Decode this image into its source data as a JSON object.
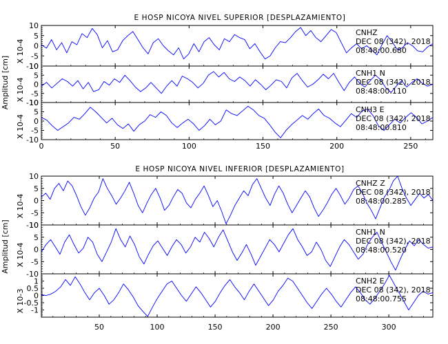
{
  "chart_data": [
    {
      "type": "line",
      "title": "E HOSP NICOYA NIVEL SUPERIOR [DESPLAZAMIENTO]",
      "ylabel": "Amplitud [cm]",
      "xlim": [
        0,
        265
      ],
      "xticks": [
        0,
        50,
        100,
        150,
        200,
        250
      ],
      "line_color": "#0000ff",
      "traces": [
        {
          "scale_label": "X 10-4",
          "ylim": [
            -10,
            10
          ],
          "yticks": [
            -10,
            -5,
            0,
            5,
            10
          ],
          "channel": "CNHZ",
          "date": "DEC 08 (342), 2018",
          "time": "08:48:00.680",
          "values": [
            0.5,
            -1.2,
            3.0,
            -2.0,
            1.5,
            -3.5,
            2.0,
            0.5,
            6.0,
            4.0,
            8.5,
            5.5,
            -1.0,
            2.5,
            -3.0,
            -2.0,
            2.5,
            5.0,
            7.0,
            3.0,
            -1.0,
            -4.0,
            1.5,
            3.5,
            0.0,
            -2.5,
            -4.5,
            -1.0,
            -6.5,
            -4.0,
            1.0,
            -3.0,
            2.0,
            4.0,
            0.5,
            -2.0,
            3.5,
            2.0,
            5.5,
            4.0,
            3.0,
            -1.5,
            1.0,
            -3.0,
            -6.5,
            -5.0,
            -1.0,
            2.0,
            1.5,
            4.0,
            7.0,
            9.0,
            5.0,
            7.5,
            4.0,
            2.0,
            5.0,
            8.0,
            6.5,
            1.5,
            -3.5,
            -1.0,
            1.0,
            -1.5,
            0.0,
            -2.0,
            -4.5,
            0.5,
            5.0,
            2.0,
            -2.0,
            -1.0,
            1.5,
            0.0,
            -2.5,
            -3.0,
            -0.5,
            1.0
          ]
        },
        {
          "scale_label": "X 10-4",
          "ylim": [
            -10,
            10
          ],
          "yticks": [
            -10,
            -5,
            0,
            5,
            10
          ],
          "channel": "CNH1 N",
          "date": "DEC 08 (342), 2018",
          "time": "08:48:00.110",
          "values": [
            -1.0,
            1.0,
            -2.0,
            0.5,
            3.0,
            1.5,
            -1.0,
            2.0,
            -2.5,
            1.0,
            -4.0,
            -3.0,
            1.5,
            -0.5,
            3.0,
            1.0,
            5.0,
            2.0,
            -1.5,
            -4.0,
            -2.0,
            1.0,
            -2.0,
            -5.0,
            -1.0,
            2.0,
            -1.0,
            4.5,
            3.0,
            1.0,
            -2.0,
            0.5,
            5.0,
            7.0,
            4.0,
            6.5,
            3.0,
            1.5,
            4.0,
            2.0,
            -1.0,
            2.5,
            0.0,
            -3.0,
            -0.5,
            2.5,
            1.5,
            -2.0,
            3.5,
            6.0,
            2.0,
            -1.5,
            0.0,
            2.5,
            5.5,
            3.0,
            6.0,
            1.0,
            -3.5,
            1.0,
            4.0,
            0.5,
            -1.5,
            2.0,
            5.0,
            2.5,
            -2.0,
            -4.5,
            -1.0,
            2.0,
            -1.5,
            1.0,
            3.0,
            0.5,
            -1.0,
            0.0
          ]
        },
        {
          "scale_label": "X 10-4",
          "ylim": [
            -10,
            10
          ],
          "yticks": [
            -10,
            -5,
            0,
            5,
            10
          ],
          "channel": "CNH3 E",
          "date": "DEC 08 (342), 2018",
          "time": "08:48:00.810",
          "values": [
            2.0,
            0.5,
            -2.5,
            -5.0,
            -3.0,
            -1.0,
            2.0,
            1.0,
            4.0,
            7.5,
            5.0,
            2.0,
            -1.0,
            1.5,
            -2.0,
            -4.0,
            -1.5,
            -5.5,
            -2.0,
            0.0,
            3.5,
            2.0,
            5.0,
            3.0,
            -1.0,
            -3.5,
            -1.0,
            1.0,
            -1.5,
            -5.0,
            -2.5,
            1.0,
            -2.0,
            0.0,
            6.0,
            4.0,
            3.0,
            5.5,
            8.0,
            6.0,
            3.0,
            1.5,
            -2.0,
            -6.0,
            -9.0,
            -5.0,
            -2.0,
            0.5,
            3.0,
            1.0,
            4.0,
            6.5,
            3.0,
            1.5,
            -1.0,
            -3.0,
            0.5,
            4.0,
            2.0,
            5.5,
            6.5,
            3.0,
            -2.5,
            -5.0,
            -2.0,
            1.0,
            -1.0,
            2.0,
            4.5,
            2.0,
            -1.5,
            0.0,
            2.0
          ]
        }
      ]
    },
    {
      "type": "line",
      "title": "E HOSP NICOYA NIVEL INFERIOR [DESPLAZAMIENTO]",
      "ylabel": "Amplitud [cm]",
      "xlim": [
        0,
        338
      ],
      "xticks": [
        50,
        100,
        150,
        200,
        250,
        300
      ],
      "line_color": "#0000ff",
      "traces": [
        {
          "scale_label": "X 10-4",
          "ylim": [
            -10,
            10
          ],
          "yticks": [
            -10,
            -5,
            0,
            5,
            10
          ],
          "channel": "CNHZ Z",
          "date": "DEC 08 (342), 2018",
          "time": "08:48:00.285",
          "values": [
            1.5,
            3.0,
            0.5,
            5.0,
            7.0,
            4.0,
            8.0,
            6.0,
            2.0,
            -2.5,
            -6.0,
            -3.0,
            1.0,
            3.5,
            9.0,
            5.0,
            2.0,
            -1.5,
            1.0,
            4.0,
            7.5,
            3.0,
            -2.0,
            -5.0,
            -1.0,
            2.5,
            5.0,
            1.0,
            -4.0,
            -2.0,
            1.5,
            4.5,
            3.0,
            -1.0,
            -3.0,
            0.5,
            3.0,
            6.0,
            2.0,
            -2.5,
            0.0,
            -4.5,
            -9.5,
            -6.0,
            -2.0,
            1.0,
            4.0,
            2.0,
            6.5,
            9.0,
            5.0,
            1.0,
            -2.0,
            2.5,
            6.0,
            3.0,
            -1.5,
            -5.0,
            -2.0,
            1.0,
            4.0,
            1.5,
            -3.0,
            -6.5,
            -4.0,
            -1.0,
            2.5,
            5.0,
            2.0,
            -1.5,
            1.0,
            4.5,
            6.0,
            3.0,
            -1.0,
            -4.0,
            -7.5,
            -3.0,
            1.5,
            4.0,
            8.0,
            11.0,
            5.0,
            1.0,
            -2.0,
            0.5,
            3.0,
            1.0,
            2.5,
            0.0
          ]
        },
        {
          "scale_label": "X 10-4",
          "ylim": [
            -10,
            10
          ],
          "yticks": [
            -10,
            -5,
            0,
            5,
            10
          ],
          "channel": "CNH1 N",
          "date": "DEC 08 (342), 2018",
          "time": "08:48:00.520",
          "values": [
            -1.0,
            2.0,
            4.0,
            1.0,
            -2.0,
            3.0,
            6.0,
            2.0,
            -1.5,
            0.5,
            5.0,
            3.0,
            -2.0,
            -5.0,
            -1.0,
            3.0,
            8.5,
            4.0,
            1.0,
            5.5,
            2.0,
            -3.0,
            -6.0,
            -2.0,
            1.5,
            3.5,
            0.5,
            -2.5,
            1.0,
            4.0,
            2.0,
            -1.5,
            1.0,
            5.0,
            3.0,
            7.0,
            4.5,
            1.0,
            5.0,
            8.0,
            3.5,
            -1.0,
            -4.5,
            -1.5,
            2.0,
            -2.0,
            -6.5,
            -3.0,
            0.5,
            4.0,
            2.0,
            -1.0,
            2.5,
            6.0,
            8.5,
            4.0,
            1.0,
            -2.5,
            -1.0,
            3.0,
            0.0,
            -4.5,
            -7.0,
            -3.0,
            1.0,
            4.0,
            2.0,
            -1.0,
            -4.0,
            -2.0,
            2.0,
            5.0,
            7.0,
            3.0,
            -1.0,
            -5.0,
            -8.5,
            -4.0,
            0.0,
            3.5,
            1.5,
            4.0,
            2.0,
            0.5,
            1.0
          ]
        },
        {
          "scale_label": "X 10-3",
          "ylim": [
            -1.5,
            1.5
          ],
          "yticks": [
            -1,
            -0.5,
            0,
            0.5,
            1
          ],
          "channel": "CNH2 E",
          "date": "DEC 08 (342), 2018",
          "time": "08:48:00.755",
          "values": [
            0.05,
            0.0,
            0.1,
            0.3,
            0.6,
            1.1,
            0.7,
            1.3,
            0.8,
            0.2,
            -0.3,
            0.2,
            0.5,
            0.0,
            -0.6,
            -0.3,
            0.2,
            0.8,
            0.4,
            -0.1,
            -0.7,
            -1.1,
            -1.45,
            -0.8,
            -0.2,
            0.3,
            0.8,
            1.0,
            0.5,
            0.0,
            -0.4,
            0.1,
            0.6,
            0.2,
            -0.3,
            -0.8,
            -0.4,
            0.2,
            0.7,
            1.1,
            0.6,
            0.2,
            -0.3,
            0.3,
            0.8,
            0.3,
            -0.2,
            -0.7,
            -0.3,
            0.3,
            0.7,
            1.2,
            1.0,
            0.5,
            0.0,
            -0.5,
            -0.9,
            -0.4,
            0.1,
            0.5,
            0.1,
            -0.4,
            -0.8,
            -0.3,
            0.2,
            0.6,
            0.2,
            -0.3,
            -0.6,
            -0.2,
            0.3,
            0.8,
            1.4,
            0.8,
            0.2,
            -0.4,
            -1.0,
            -0.5,
            0.0,
            0.3,
            0.1,
            0.2
          ]
        }
      ]
    }
  ]
}
